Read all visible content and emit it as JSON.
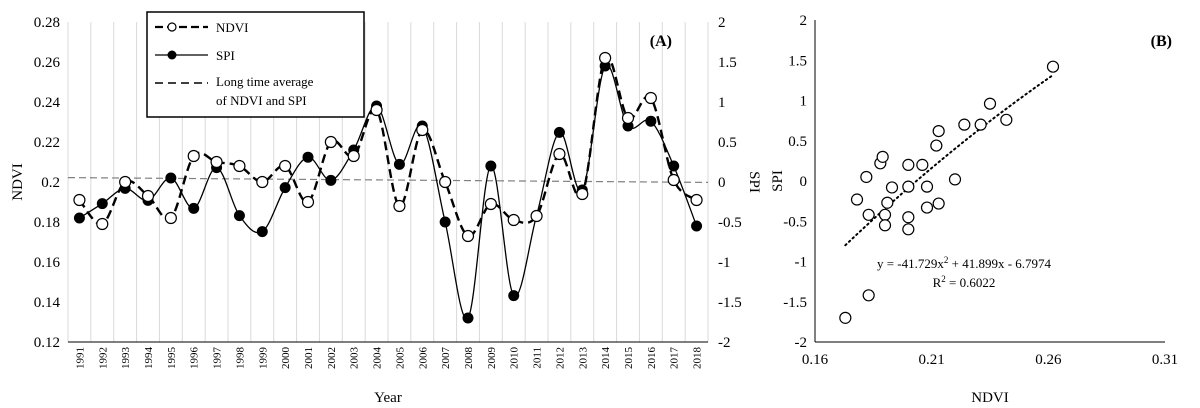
{
  "chart_data": [
    {
      "type": "line",
      "panel_label": "(A)",
      "xlabel": "Year",
      "ylabel": "NDVI",
      "y2label": "SPI",
      "x": [
        1991,
        1992,
        1993,
        1994,
        1995,
        1996,
        1997,
        1998,
        1999,
        2000,
        2001,
        2002,
        2003,
        2004,
        2005,
        2006,
        2007,
        2008,
        2009,
        2010,
        2011,
        2012,
        2013,
        2014,
        2015,
        2016,
        2017,
        2018
      ],
      "ylim": [
        0.12,
        0.28
      ],
      "y2lim": [
        -2,
        2
      ],
      "yticks": [
        "0.12",
        "0.14",
        "0.16",
        "0.18",
        "0.2",
        "0.22",
        "0.24",
        "0.26",
        "0.28"
      ],
      "y2ticks": [
        "-2",
        "-1.5",
        "-1",
        "-0.5",
        "0",
        "0.5",
        "1",
        "1.5",
        "2"
      ],
      "grid": "vertical",
      "legend_position": "top-left",
      "series": [
        {
          "name": "NDVI",
          "axis": "left",
          "style": "dashed-open-circles",
          "color": "#000000",
          "values": [
            0.191,
            0.179,
            0.2,
            0.193,
            0.182,
            0.213,
            0.21,
            0.208,
            0.2,
            0.208,
            0.19,
            0.22,
            0.213,
            0.236,
            0.188,
            0.226,
            0.2,
            0.173,
            0.189,
            0.181,
            0.183,
            0.214,
            0.194,
            0.262,
            0.232,
            0.242,
            0.201,
            0.191
          ]
        },
        {
          "name": "SPI",
          "axis": "right",
          "style": "solid-filled-circles",
          "color": "#000000",
          "values": [
            -0.45,
            -0.27,
            -0.08,
            -0.23,
            0.05,
            -0.33,
            0.18,
            -0.42,
            -0.62,
            -0.07,
            0.31,
            0.02,
            0.4,
            0.95,
            0.22,
            0.7,
            -0.5,
            -1.7,
            0.2,
            -1.42,
            -0.42,
            0.62,
            -0.1,
            1.45,
            0.7,
            0.76,
            0.2,
            -0.55
          ]
        },
        {
          "name": "Long time average of NDVI and SPI",
          "axis": "left",
          "style": "dashed-gray",
          "color": "#808080",
          "line_from": 0.2022,
          "line_to": 0.1998
        }
      ],
      "legend_labels": [
        "NDVI",
        "SPI",
        "Long time average",
        "of NDVI and SPI"
      ]
    },
    {
      "type": "scatter",
      "panel_label": "(B)",
      "xlabel": "NDVI",
      "ylabel": "SPI",
      "xlim": [
        0.16,
        0.31
      ],
      "ylim": [
        -2,
        2
      ],
      "xticks": [
        "0.16",
        "0.21",
        "0.26",
        "0.31"
      ],
      "yticks": [
        "-2",
        "-1.5",
        "-1",
        "-0.5",
        "0",
        "0.5",
        "1",
        "1.5",
        "2"
      ],
      "points": [
        [
          0.173,
          -1.7
        ],
        [
          0.183,
          -1.42
        ],
        [
          0.178,
          -0.23
        ],
        [
          0.182,
          0.05
        ],
        [
          0.183,
          -0.42
        ],
        [
          0.188,
          0.22
        ],
        [
          0.189,
          0.3
        ],
        [
          0.19,
          -0.42
        ],
        [
          0.19,
          -0.55
        ],
        [
          0.191,
          -0.27
        ],
        [
          0.193,
          -0.08
        ],
        [
          0.2,
          -0.07
        ],
        [
          0.2,
          0.2
        ],
        [
          0.2,
          -0.45
        ],
        [
          0.2,
          -0.6
        ],
        [
          0.206,
          0.2
        ],
        [
          0.208,
          -0.07
        ],
        [
          0.208,
          -0.33
        ],
        [
          0.212,
          0.44
        ],
        [
          0.213,
          0.62
        ],
        [
          0.213,
          -0.28
        ],
        [
          0.22,
          0.02
        ],
        [
          0.224,
          0.7
        ],
        [
          0.231,
          0.7
        ],
        [
          0.235,
          0.96
        ],
        [
          0.242,
          0.76
        ],
        [
          0.262,
          1.42
        ]
      ],
      "trendline": {
        "x_from": 0.173,
        "x_to": 0.262,
        "style": "dotted"
      },
      "equation": "y = -41.729x",
      "equation_exp": "2",
      "equation_rest": " + 41.899x - 6.7974",
      "r2_label": "R",
      "r2_exp": "2",
      "r2_value": " = 0.6022",
      "coefficients": {
        "a": -41.729,
        "b": 41.899,
        "c": -6.7974
      }
    }
  ]
}
